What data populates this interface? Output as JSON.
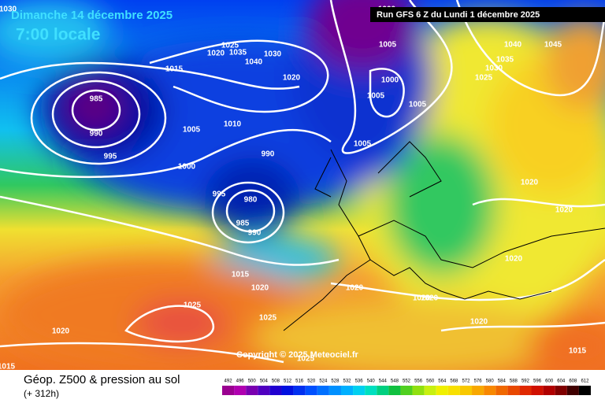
{
  "header": {
    "date": "Dimanche 14 décembre 2025",
    "time": "7:00 locale",
    "run": "Run GFS 6 Z du Lundi 1 décembre 2025"
  },
  "copyright": "Copyright © 2025 Meteociel.fr",
  "footer": {
    "title": "Géop. Z500 & pression au sol",
    "lead": "(+ 312h)"
  },
  "scale": {
    "labels": [
      "492",
      "496",
      "500",
      "504",
      "508",
      "512",
      "516",
      "520",
      "524",
      "528",
      "532",
      "536",
      "540",
      "544",
      "548",
      "552",
      "556",
      "560",
      "564",
      "568",
      "572",
      "576",
      "580",
      "584",
      "588",
      "592",
      "596",
      "600",
      "604",
      "608",
      "612"
    ],
    "colors": [
      "#9a0090",
      "#b000b0",
      "#7a00b0",
      "#5000c0",
      "#2000d0",
      "#0010e0",
      "#0030f0",
      "#0050ff",
      "#0070ff",
      "#0090ff",
      "#00b0ff",
      "#00d0f0",
      "#00e0c0",
      "#00d080",
      "#10c040",
      "#50d020",
      "#90e010",
      "#c8f010",
      "#f0f000",
      "#f8e000",
      "#f8c800",
      "#f8a800",
      "#f88800",
      "#f06800",
      "#e84800",
      "#e02800",
      "#d01000",
      "#b00000",
      "#800000",
      "#400000",
      "#000000"
    ]
  },
  "isobar_labels": [
    "1030",
    "985",
    "990",
    "995",
    "1000",
    "1005",
    "1010",
    "1015",
    "1020",
    "1025",
    "1035",
    "1040",
    "1030",
    "1020",
    "990",
    "995",
    "980",
    "985",
    "990",
    "1015",
    "1020",
    "1025",
    "1025",
    "1020",
    "1015",
    "1000",
    "1005",
    "1000",
    "1005",
    "1005",
    "1005",
    "1040",
    "1045",
    "1035",
    "1030",
    "1025",
    "1020",
    "1020",
    "1020",
    "1020",
    "1020",
    "1020",
    "1020",
    "1015",
    "1025"
  ]
}
